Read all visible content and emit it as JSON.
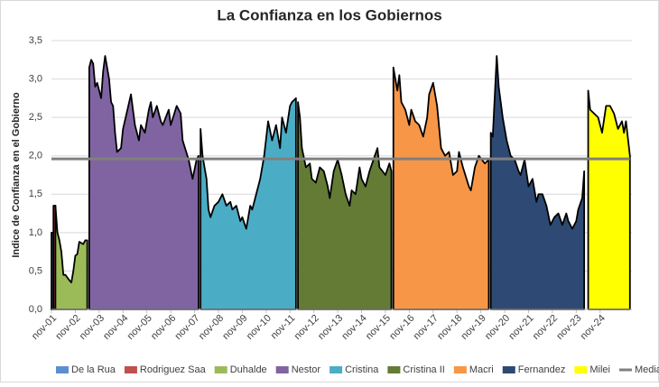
{
  "chart_data": {
    "type": "area",
    "title": "La Confianza en los Gobiernos",
    "y_label": "Indice de Confianza en el Gobierno",
    "xlim": [
      0,
      292
    ],
    "ylim": [
      0,
      3.5
    ],
    "grid": true,
    "legend": "bottom",
    "xticks": [
      {
        "value": 0,
        "label": "nov-01"
      },
      {
        "value": 12,
        "label": "nov-02"
      },
      {
        "value": 24,
        "label": "nov-03"
      },
      {
        "value": 36,
        "label": "nov-04"
      },
      {
        "value": 48,
        "label": "nov-05"
      },
      {
        "value": 60,
        "label": "nov-06"
      },
      {
        "value": 72,
        "label": "nov-07"
      },
      {
        "value": 84,
        "label": "nov-08"
      },
      {
        "value": 96,
        "label": "nov-09"
      },
      {
        "value": 108,
        "label": "nov-10"
      },
      {
        "value": 120,
        "label": "nov-11"
      },
      {
        "value": 132,
        "label": "nov-12"
      },
      {
        "value": 144,
        "label": "nov-13"
      },
      {
        "value": 156,
        "label": "nov-14"
      },
      {
        "value": 168,
        "label": "nov-15"
      },
      {
        "value": 180,
        "label": "nov-16"
      },
      {
        "value": 192,
        "label": "nov-17"
      },
      {
        "value": 204,
        "label": "nov-18"
      },
      {
        "value": 216,
        "label": "nov-19"
      },
      {
        "value": 228,
        "label": "nov-20"
      },
      {
        "value": 240,
        "label": "nov-21"
      },
      {
        "value": 252,
        "label": "nov-22"
      },
      {
        "value": 264,
        "label": "nov-23"
      },
      {
        "value": 276,
        "label": "nov-24"
      }
    ],
    "yticks": [
      {
        "value": 0,
        "label": "0,0"
      },
      {
        "value": 0.5,
        "label": "0,5"
      },
      {
        "value": 1,
        "label": "1,0"
      },
      {
        "value": 1.5,
        "label": "1,5"
      },
      {
        "value": 2,
        "label": "2,0"
      },
      {
        "value": 2.5,
        "label": "2,5"
      },
      {
        "value": 3,
        "label": "3,0"
      },
      {
        "value": 3.5,
        "label": "3,5"
      }
    ],
    "series": [
      {
        "name": "De la Rua",
        "color": "#5b8fd0",
        "x": [
          0,
          1
        ],
        "values": [
          1.0,
          1.0
        ]
      },
      {
        "name": "Rodriguez Saa",
        "color": "#c0504d",
        "x": [
          1,
          2
        ],
        "values": [
          1.35,
          1.35
        ]
      },
      {
        "name": "Duhalde",
        "color": "#9bbb59",
        "x": [
          2,
          3,
          4,
          5,
          6,
          7,
          9,
          10,
          11,
          12,
          13,
          14,
          16,
          17,
          18
        ],
        "values": [
          1.35,
          1.0,
          0.9,
          0.75,
          0.45,
          0.45,
          0.38,
          0.35,
          0.5,
          0.7,
          0.72,
          0.88,
          0.85,
          0.9,
          0.9
        ]
      },
      {
        "name": "Nestor",
        "color": "#8064a2",
        "x": [
          19,
          20,
          21,
          22,
          23,
          25,
          26,
          27,
          29,
          30,
          31,
          32,
          33,
          35,
          36,
          40,
          42,
          44,
          45,
          47,
          49,
          50,
          51,
          53,
          55,
          56,
          59,
          60,
          63,
          65,
          66,
          69,
          71,
          73,
          74
        ],
        "values": [
          3.15,
          3.25,
          3.2,
          2.9,
          2.95,
          2.75,
          3.1,
          3.3,
          3.0,
          2.7,
          2.65,
          2.3,
          2.05,
          2.1,
          2.35,
          2.8,
          2.4,
          2.2,
          2.4,
          2.3,
          2.6,
          2.7,
          2.5,
          2.65,
          2.45,
          2.4,
          2.6,
          2.4,
          2.65,
          2.55,
          2.2,
          1.95,
          1.7,
          1.95,
          2.0
        ]
      },
      {
        "name": "Cristina",
        "color": "#4bacc6",
        "x": [
          75,
          76,
          78,
          79,
          80,
          82,
          84,
          86,
          88,
          90,
          91,
          93,
          95,
          96,
          98,
          100,
          101,
          104,
          105,
          107,
          109,
          111,
          113,
          115,
          116,
          118,
          120,
          121,
          123
        ],
        "values": [
          2.35,
          2.0,
          1.7,
          1.3,
          1.2,
          1.35,
          1.4,
          1.5,
          1.35,
          1.4,
          1.3,
          1.35,
          1.15,
          1.2,
          1.05,
          1.35,
          1.3,
          1.6,
          1.7,
          2.0,
          2.45,
          2.2,
          2.4,
          2.1,
          2.5,
          2.3,
          2.65,
          2.7,
          2.75
        ]
      },
      {
        "name": "Cristina II",
        "color": "#637b35",
        "x": [
          124,
          125,
          126,
          128,
          130,
          131,
          133,
          135,
          137,
          139,
          140,
          142,
          144,
          146,
          148,
          150,
          151,
          153,
          155,
          156,
          158,
          160,
          162,
          164,
          165,
          168,
          170,
          171
        ],
        "values": [
          2.7,
          2.5,
          2.1,
          1.85,
          1.9,
          1.7,
          1.65,
          1.85,
          1.8,
          1.6,
          1.45,
          1.8,
          1.95,
          1.75,
          1.5,
          1.35,
          1.55,
          1.5,
          1.85,
          1.7,
          1.6,
          1.8,
          1.95,
          2.1,
          1.85,
          1.75,
          1.9,
          1.8
        ]
      },
      {
        "name": "Macri",
        "color": "#f79646",
        "x": [
          172,
          174,
          175,
          176,
          178,
          180,
          181,
          183,
          185,
          187,
          189,
          190,
          192,
          194,
          196,
          198,
          200,
          202,
          204,
          205,
          207,
          210,
          211,
          213,
          215,
          218,
          220
        ],
        "values": [
          3.15,
          2.85,
          3.05,
          2.7,
          2.6,
          2.4,
          2.6,
          2.45,
          2.4,
          2.25,
          2.5,
          2.8,
          2.95,
          2.65,
          2.1,
          2.0,
          2.05,
          1.75,
          1.8,
          2.05,
          1.85,
          1.6,
          1.55,
          1.85,
          2.0,
          1.9,
          1.95
        ]
      },
      {
        "name": "Fernandez",
        "color": "#2e4a74",
        "x": [
          221,
          222,
          224,
          225,
          227,
          229,
          231,
          233,
          235,
          236,
          238,
          240,
          242,
          244,
          245,
          247,
          249,
          251,
          253,
          255,
          257,
          259,
          260,
          262,
          264,
          265,
          267,
          268
        ],
        "values": [
          2.3,
          2.25,
          3.3,
          2.9,
          2.5,
          2.2,
          2.0,
          1.95,
          1.8,
          1.75,
          1.95,
          1.6,
          1.7,
          1.4,
          1.5,
          1.5,
          1.35,
          1.1,
          1.2,
          1.25,
          1.1,
          1.25,
          1.15,
          1.05,
          1.15,
          1.3,
          1.45,
          1.8
        ]
      },
      {
        "name": "Milei",
        "color": "#ffff00",
        "x": [
          270,
          271,
          273,
          275,
          277,
          279,
          281,
          283,
          285,
          287,
          288,
          289,
          291
        ],
        "values": [
          2.85,
          2.6,
          2.55,
          2.5,
          2.3,
          2.65,
          2.65,
          2.55,
          2.35,
          2.45,
          2.3,
          2.45,
          2.0
        ]
      },
      {
        "name": "Mediana",
        "color": "#808080",
        "type": "line",
        "x": [
          0,
          291
        ],
        "values": [
          1.96,
          1.96
        ]
      }
    ]
  }
}
